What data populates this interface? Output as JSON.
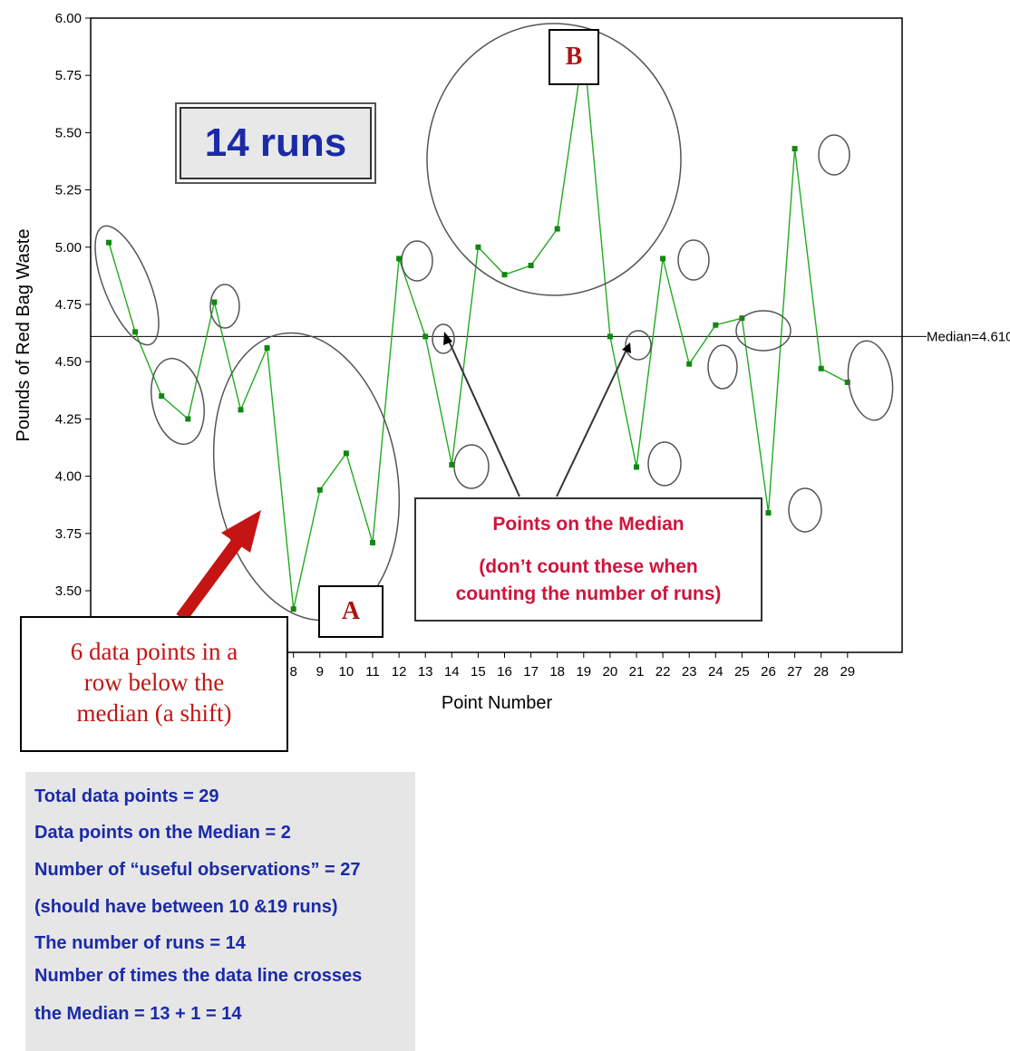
{
  "chart_data": {
    "type": "line",
    "ylabel": "Pounds of Red Bag Waste",
    "xlabel": "Point Number",
    "ylim": [
      3.4,
      6.0
    ],
    "yticks": [
      "3.50",
      "3.75",
      "4.00",
      "4.25",
      "4.50",
      "4.75",
      "5.00",
      "5.25",
      "5.50",
      "5.75",
      "6.00"
    ],
    "xticks": [
      "8",
      "9",
      "10",
      "11",
      "12",
      "13",
      "14",
      "15",
      "16",
      "17",
      "18",
      "19",
      "20",
      "21",
      "22",
      "23",
      "24",
      "25",
      "26",
      "27",
      "28",
      "29"
    ],
    "x": [
      1,
      2,
      3,
      4,
      5,
      6,
      7,
      8,
      9,
      10,
      11,
      12,
      13,
      14,
      15,
      16,
      17,
      18,
      19,
      20,
      21,
      22,
      23,
      24,
      25,
      26,
      27,
      28,
      29
    ],
    "values": [
      5.02,
      4.63,
      4.35,
      4.25,
      4.76,
      4.29,
      4.56,
      3.42,
      3.94,
      4.1,
      3.71,
      4.95,
      4.61,
      4.05,
      5.0,
      4.88,
      4.92,
      5.08,
      5.87,
      4.61,
      4.04,
      4.95,
      4.49,
      4.66,
      4.69,
      3.84,
      5.43,
      4.47,
      4.41
    ],
    "median": 4.61,
    "median_label": "Median=4.610",
    "line_color": "#22aa22",
    "marker_color": "#118811",
    "grid": false
  },
  "annotations": {
    "runs_label": "14 runs",
    "region_a": "A",
    "region_b": "B",
    "median_note_title": "Points on the Median",
    "median_note_line1": "(don’t count these when",
    "median_note_line2": "counting the number of runs)",
    "shift_line1": "6 data points in a",
    "shift_line2": "row below the",
    "shift_line3": "median (a shift)",
    "arrow_color": "#c41414"
  },
  "summary": {
    "line1": "Total data points = 29",
    "line2": "Data points on the Median = 2",
    "line3": "Number of “useful observations” = 27",
    "line4": "(should have between 10 &19 runs)",
    "line5": "The number of runs = 14",
    "line6": "Number of times the data line crosses",
    "line7": "the Median = 13 + 1 = 14"
  }
}
